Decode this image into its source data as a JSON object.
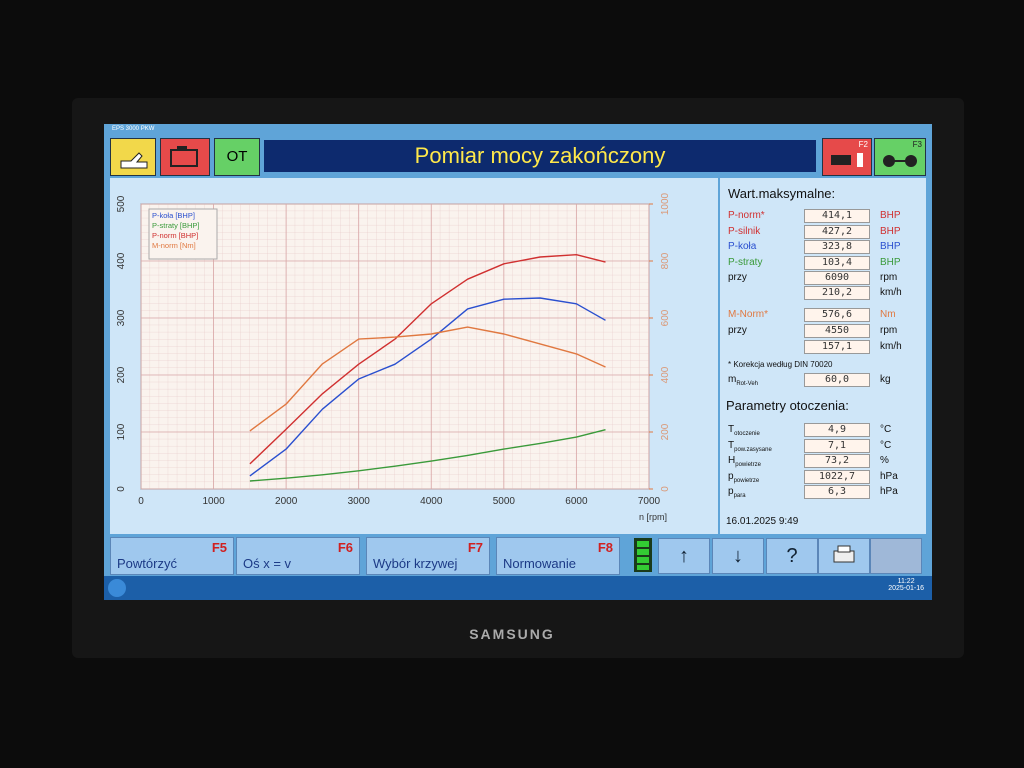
{
  "window_title": "EPS 3000 PKW",
  "toolbar": {
    "ot": "OT",
    "f2": "F2",
    "f3": "F3"
  },
  "title": "Pomiar mocy zakończony",
  "chart_data": {
    "type": "line",
    "x": [
      1500,
      2000,
      2500,
      3000,
      3500,
      4000,
      4500,
      5000,
      5500,
      6000,
      6400
    ],
    "xlim": [
      0,
      7000
    ],
    "xticks": [
      0,
      1000,
      2000,
      3000,
      4000,
      5000,
      6000,
      7000
    ],
    "xlabel": "n [rpm]",
    "ylim": [
      0,
      500
    ],
    "yticks": [
      0,
      100,
      200,
      300,
      400,
      500
    ],
    "y2lim": [
      0,
      1000
    ],
    "y2ticks": [
      0,
      200,
      400,
      600,
      800,
      1000
    ],
    "grid": true,
    "legend": "top-left",
    "series": [
      {
        "name": "P-koła [BHP]",
        "color": "#2a4fcf",
        "values": [
          23,
          70,
          140,
          193,
          219,
          263,
          316,
          333,
          335,
          325,
          296
        ]
      },
      {
        "name": "P-straty [BHP]",
        "color": "#3a9a3a",
        "values": [
          14,
          19,
          25,
          32,
          40,
          49,
          59,
          70,
          80,
          91,
          104
        ]
      },
      {
        "name": "P-norm [BHP]",
        "color": "#d03030",
        "values": [
          44,
          105,
          167,
          219,
          263,
          325,
          368,
          395,
          407,
          411,
          398
        ]
      },
      {
        "name": "M-norm [Nm]",
        "color": "#e07840",
        "axis": "y2",
        "values": [
          204,
          298,
          439,
          526,
          533,
          544,
          568,
          544,
          509,
          474,
          428
        ]
      }
    ]
  },
  "max_values": {
    "title": "Wart.maksymalne:",
    "rows": [
      {
        "label": "P-norm*",
        "value": "414,1",
        "unit": "BHP",
        "color": "#d03030"
      },
      {
        "label": "P-silnik",
        "value": "427,2",
        "unit": "BHP",
        "color": "#d03030"
      },
      {
        "label": "P-koła",
        "value": "323,8",
        "unit": "BHP",
        "color": "#2a4fcf"
      },
      {
        "label": "P-straty",
        "value": "103,4",
        "unit": "BHP",
        "color": "#3a9a3a"
      },
      {
        "label": "przy",
        "value": "6090",
        "unit": "rpm",
        "color": "#111111"
      },
      {
        "value": "210,2",
        "unit": "km/h",
        "color": "#111111"
      },
      {
        "label": "M-Norm*",
        "value": "576,6",
        "unit": "Nm",
        "color": "#e07840"
      },
      {
        "label": "przy",
        "value": "4550",
        "unit": "rpm",
        "color": "#111111"
      },
      {
        "value": "157,1",
        "unit": "km/h",
        "color": "#111111"
      }
    ],
    "note": "* Korekcja według DIN 70020",
    "mass": {
      "label": "m",
      "sub": "Rot-Veh",
      "value": "60,0",
      "unit": "kg"
    }
  },
  "ambient": {
    "title": "Parametry otoczenia:",
    "rows": [
      {
        "label": "T",
        "sub": "otoczenie",
        "value": "4,9",
        "unit": "°C"
      },
      {
        "label": "T",
        "sub": "pow.zasysane",
        "value": "7,1",
        "unit": "°C"
      },
      {
        "label": "H",
        "sub": "powietrze",
        "value": "73,2",
        "unit": "%"
      },
      {
        "label": "p",
        "sub": "powietrze",
        "value": "1022,7",
        "unit": "hPa"
      },
      {
        "label": "p",
        "sub": "para",
        "value": "6,3",
        "unit": "hPa"
      }
    ]
  },
  "timestamp": "16.01.2025  9:49",
  "buttons": [
    {
      "label": "Powtórzyć",
      "key": "F5"
    },
    {
      "label": "Oś x = v",
      "key": "F6"
    },
    {
      "label": "Wybór krzywej",
      "key": "F7"
    },
    {
      "label": "Normowanie",
      "key": "F8"
    }
  ],
  "icon_buttons": [
    "↑",
    "↓",
    "?"
  ],
  "clock": {
    "time": "11:22",
    "date": "2025-01-16"
  },
  "brand": "SAMSUNG"
}
